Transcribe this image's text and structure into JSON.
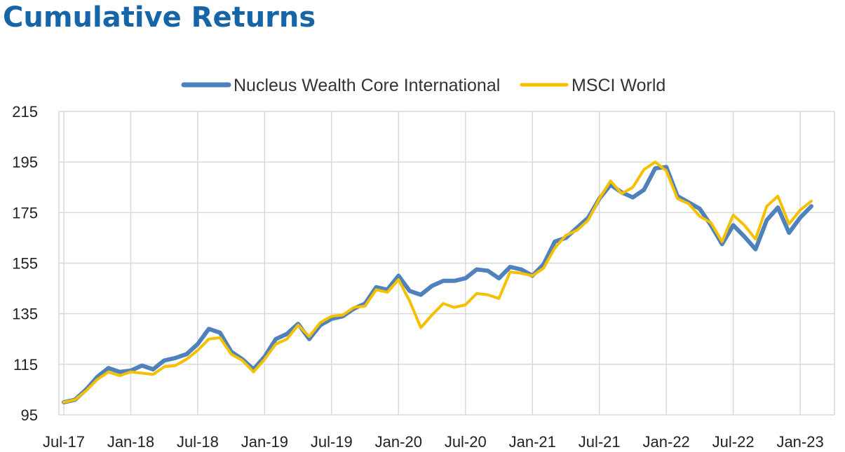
{
  "chart_data": {
    "type": "line",
    "title": "Cumulative Returns",
    "xlabel": "",
    "ylabel": "",
    "ylim": [
      95,
      215
    ],
    "yticks": [
      95,
      115,
      135,
      155,
      175,
      195,
      215
    ],
    "xticks": [
      "Jul-17",
      "Jan-18",
      "Jul-18",
      "Jan-19",
      "Jul-19",
      "Jan-20",
      "Jul-20",
      "Jan-21",
      "Jul-21",
      "Jan-22",
      "Jul-22",
      "Jan-23"
    ],
    "x": [
      "Jul-17",
      "Aug-17",
      "Sep-17",
      "Oct-17",
      "Nov-17",
      "Dec-17",
      "Jan-18",
      "Feb-18",
      "Mar-18",
      "Apr-18",
      "May-18",
      "Jun-18",
      "Jul-18",
      "Aug-18",
      "Sep-18",
      "Oct-18",
      "Nov-18",
      "Dec-18",
      "Jan-19",
      "Feb-19",
      "Mar-19",
      "Apr-19",
      "May-19",
      "Jun-19",
      "Jul-19",
      "Aug-19",
      "Sep-19",
      "Oct-19",
      "Nov-19",
      "Dec-19",
      "Jan-20",
      "Feb-20",
      "Mar-20",
      "Apr-20",
      "May-20",
      "Jun-20",
      "Jul-20",
      "Aug-20",
      "Sep-20",
      "Oct-20",
      "Nov-20",
      "Dec-20",
      "Jan-21",
      "Feb-21",
      "Mar-21",
      "Apr-21",
      "May-21",
      "Jun-21",
      "Jul-21",
      "Aug-21",
      "Sep-21",
      "Oct-21",
      "Nov-21",
      "Dec-21",
      "Jan-22",
      "Feb-22",
      "Mar-22",
      "Apr-22",
      "May-22",
      "Jun-22",
      "Jul-22",
      "Aug-22",
      "Sep-22",
      "Oct-22",
      "Nov-22",
      "Dec-22",
      "Jan-23",
      "Feb-23"
    ],
    "grid": true,
    "legend": "top-center",
    "series": [
      {
        "name": "Nucleus Wealth Core International",
        "color": "#4f81bd",
        "values": [
          100,
          101,
          105,
          110,
          113.5,
          112,
          112.5,
          114.5,
          113,
          116.5,
          117.5,
          119,
          123,
          129,
          127.5,
          120,
          117,
          113,
          118,
          125,
          127,
          131,
          125,
          130.5,
          133,
          134,
          137,
          139,
          145.5,
          144.5,
          150,
          144,
          142.5,
          146,
          148,
          148,
          149,
          152.5,
          152,
          149,
          153.5,
          152.5,
          150,
          154.5,
          163.5,
          165,
          169,
          173,
          180.5,
          186,
          183,
          181,
          184,
          192.5,
          193,
          181.5,
          179,
          176.5,
          170,
          162.5,
          170,
          165.5,
          160.5,
          172,
          177,
          167,
          173,
          177.5
        ]
      },
      {
        "name": "MSCI World",
        "color": "#f5c000",
        "values": [
          100,
          101,
          104.5,
          109,
          112,
          110.5,
          112,
          111.5,
          111,
          114,
          114.5,
          117,
          120.5,
          125,
          125.5,
          119,
          116.5,
          112,
          117,
          123,
          125,
          130.5,
          126,
          131.5,
          134,
          134.5,
          137.5,
          138,
          144.5,
          143.5,
          148.5,
          140,
          129.5,
          134.5,
          139,
          137.5,
          138.5,
          143,
          142.5,
          141,
          151.5,
          151,
          150,
          153,
          161,
          166,
          168,
          172,
          180.5,
          187.5,
          182.5,
          185,
          192,
          195,
          191.5,
          180.5,
          178.5,
          173.5,
          171,
          163.5,
          174,
          170,
          164.5,
          177.5,
          181.5,
          170.5,
          176,
          179.5
        ]
      }
    ]
  }
}
